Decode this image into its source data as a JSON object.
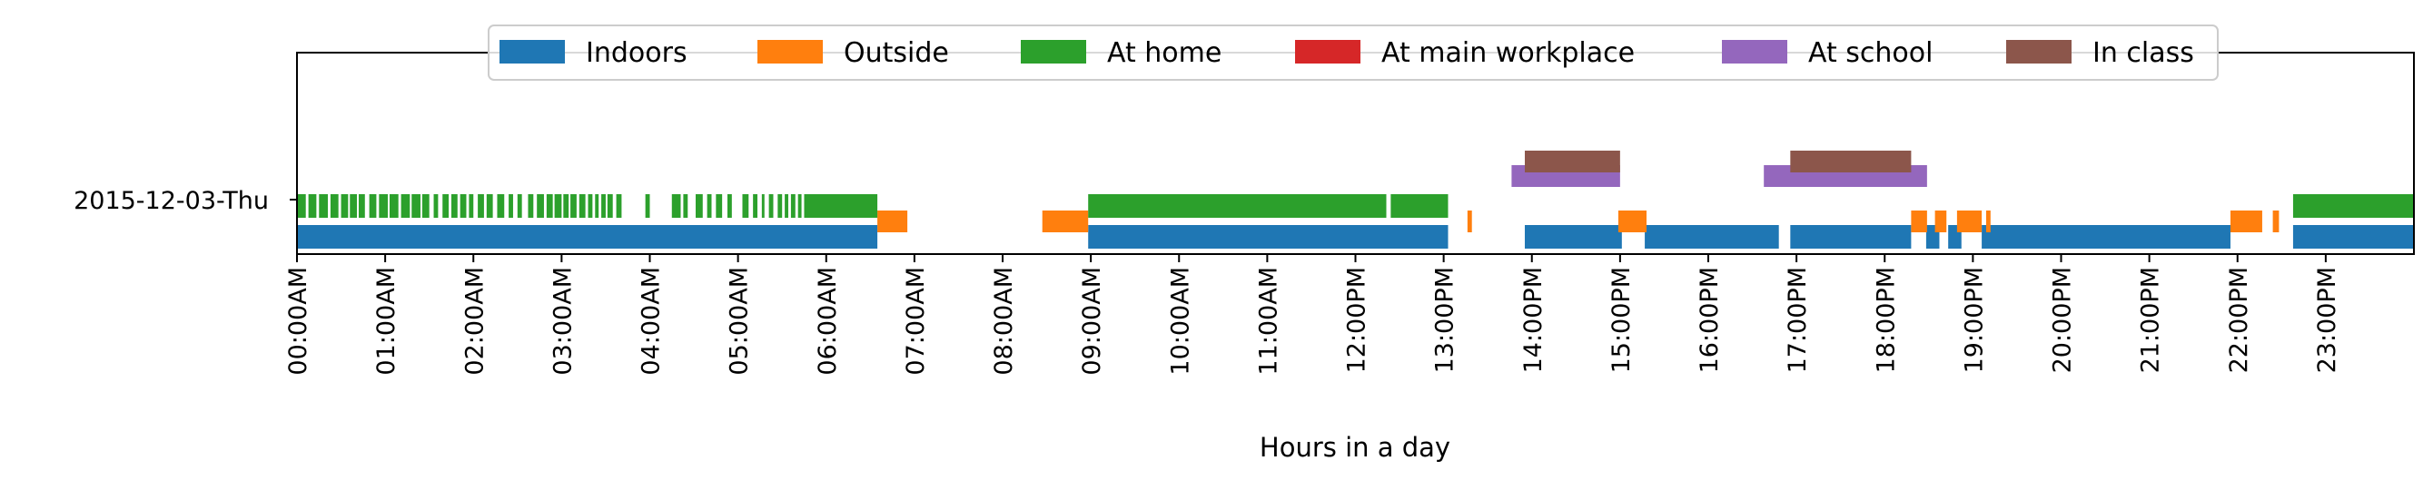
{
  "chart_data": {
    "type": "timeline",
    "xlabel": "Hours in a day",
    "day_label": "2015-12-03-Thu",
    "xlim": [
      0,
      24
    ],
    "tick_labels": [
      "00:00AM",
      "01:00AM",
      "02:00AM",
      "03:00AM",
      "04:00AM",
      "05:00AM",
      "06:00AM",
      "07:00AM",
      "08:00AM",
      "09:00AM",
      "10:00AM",
      "11:00AM",
      "12:00PM",
      "13:00PM",
      "14:00PM",
      "15:00PM",
      "16:00PM",
      "17:00PM",
      "18:00PM",
      "19:00PM",
      "20:00PM",
      "21:00PM",
      "22:00PM",
      "23:00PM"
    ],
    "legend_placement": "top-center",
    "grid": false,
    "series": [
      {
        "name": "Indoors",
        "color": "#1f77b4",
        "intervals": [
          [
            0.0,
            6.58
          ],
          [
            8.97,
            13.05
          ],
          [
            13.92,
            15.02
          ],
          [
            15.28,
            16.8
          ],
          [
            16.93,
            18.3
          ],
          [
            18.47,
            18.62
          ],
          [
            18.72,
            18.87
          ],
          [
            19.1,
            21.92
          ],
          [
            22.63,
            24.0
          ]
        ]
      },
      {
        "name": "Outside",
        "color": "#ff7f0e",
        "intervals": [
          [
            6.58,
            6.92
          ],
          [
            8.45,
            8.97
          ],
          [
            13.27,
            13.32
          ],
          [
            14.98,
            15.3
          ],
          [
            18.3,
            18.48
          ],
          [
            18.57,
            18.7
          ],
          [
            18.82,
            19.1
          ],
          [
            19.15,
            19.2
          ],
          [
            21.92,
            22.28
          ],
          [
            22.4,
            22.47
          ]
        ]
      },
      {
        "name": "At home",
        "color": "#2ca02c",
        "intervals": [
          [
            0.0,
            0.1
          ],
          [
            0.13,
            0.22
          ],
          [
            0.25,
            0.35
          ],
          [
            0.38,
            0.47
          ],
          [
            0.5,
            0.58
          ],
          [
            0.6,
            0.68
          ],
          [
            0.7,
            0.77
          ],
          [
            0.82,
            0.9
          ],
          [
            0.93,
            1.03
          ],
          [
            1.05,
            1.15
          ],
          [
            1.18,
            1.28
          ],
          [
            1.3,
            1.4
          ],
          [
            1.42,
            1.5
          ],
          [
            1.55,
            1.6
          ],
          [
            1.65,
            1.72
          ],
          [
            1.75,
            1.82
          ],
          [
            1.85,
            1.92
          ],
          [
            1.95,
            2.0
          ],
          [
            2.05,
            2.12
          ],
          [
            2.15,
            2.22
          ],
          [
            2.27,
            2.35
          ],
          [
            2.4,
            2.45
          ],
          [
            2.5,
            2.55
          ],
          [
            2.62,
            2.68
          ],
          [
            2.72,
            2.8
          ],
          [
            2.83,
            2.9
          ],
          [
            2.92,
            3.0
          ],
          [
            3.02,
            3.08
          ],
          [
            3.1,
            3.17
          ],
          [
            3.2,
            3.27
          ],
          [
            3.3,
            3.35
          ],
          [
            3.38,
            3.42
          ],
          [
            3.45,
            3.5
          ],
          [
            3.52,
            3.58
          ],
          [
            3.62,
            3.68
          ],
          [
            3.95,
            4.0
          ],
          [
            4.25,
            4.35
          ],
          [
            4.38,
            4.43
          ],
          [
            4.52,
            4.6
          ],
          [
            4.65,
            4.7
          ],
          [
            4.75,
            4.82
          ],
          [
            4.88,
            4.93
          ],
          [
            5.05,
            5.12
          ],
          [
            5.17,
            5.22
          ],
          [
            5.27,
            5.3
          ],
          [
            5.35,
            5.4
          ],
          [
            5.45,
            5.5
          ],
          [
            5.53,
            5.57
          ],
          [
            5.6,
            5.65
          ],
          [
            5.68,
            5.72
          ],
          [
            5.75,
            6.58
          ],
          [
            8.97,
            12.35
          ],
          [
            12.4,
            13.05
          ],
          [
            22.63,
            24.0
          ]
        ]
      },
      {
        "name": "At main workplace",
        "color": "#d62728",
        "intervals": []
      },
      {
        "name": "At school",
        "color": "#9467bd",
        "intervals": [
          [
            13.77,
            15.0
          ],
          [
            16.63,
            18.48
          ]
        ]
      },
      {
        "name": "In class",
        "color": "#8c564b",
        "intervals": [
          [
            13.92,
            15.0
          ],
          [
            16.93,
            18.3
          ]
        ]
      }
    ]
  }
}
